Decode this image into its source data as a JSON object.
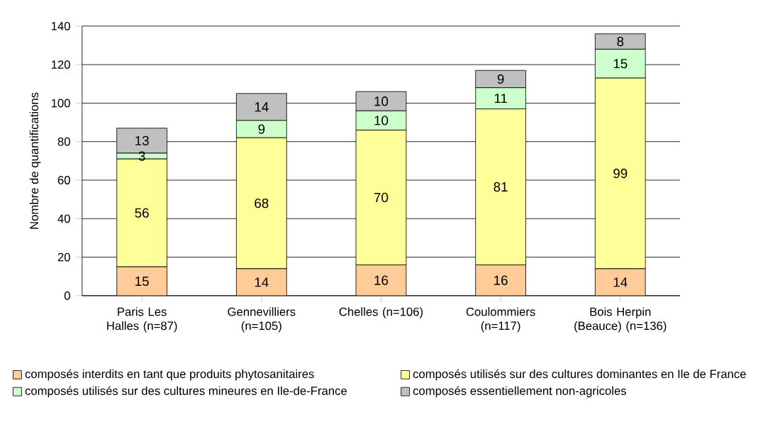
{
  "chart_data": {
    "type": "bar",
    "stacked": true,
    "ylabel": "Nombre de quantifications",
    "categories": [
      "Paris Les Halles (n=87)",
      "Gennevilliers (n=105)",
      "Chelles (n=106)",
      "Coulommiers (n=117)",
      "Bois Herpin (Beauce) (n=136)"
    ],
    "series": [
      {
        "name": "composés interdits en tant que produits phytosanitaires",
        "color": "#ffcc99",
        "values": [
          15,
          14,
          16,
          16,
          14
        ]
      },
      {
        "name": "composés utilisés sur des cultures dominantes en Ile de France",
        "color": "#ffff99",
        "values": [
          56,
          68,
          70,
          81,
          99
        ]
      },
      {
        "name": "composés utilisés sur des cultures mineures en Ile-de-France",
        "color": "#ccffcc",
        "values": [
          3,
          9,
          10,
          11,
          15
        ]
      },
      {
        "name": "composés essentiellement non-agricoles",
        "color": "#c0c0c0",
        "values": [
          13,
          14,
          10,
          9,
          8
        ]
      }
    ],
    "ylim": [
      0,
      140
    ],
    "yticks": [
      0,
      20,
      40,
      60,
      80,
      100,
      120,
      140
    ],
    "grid": "y",
    "legend": "bottom",
    "data_labels": true
  }
}
